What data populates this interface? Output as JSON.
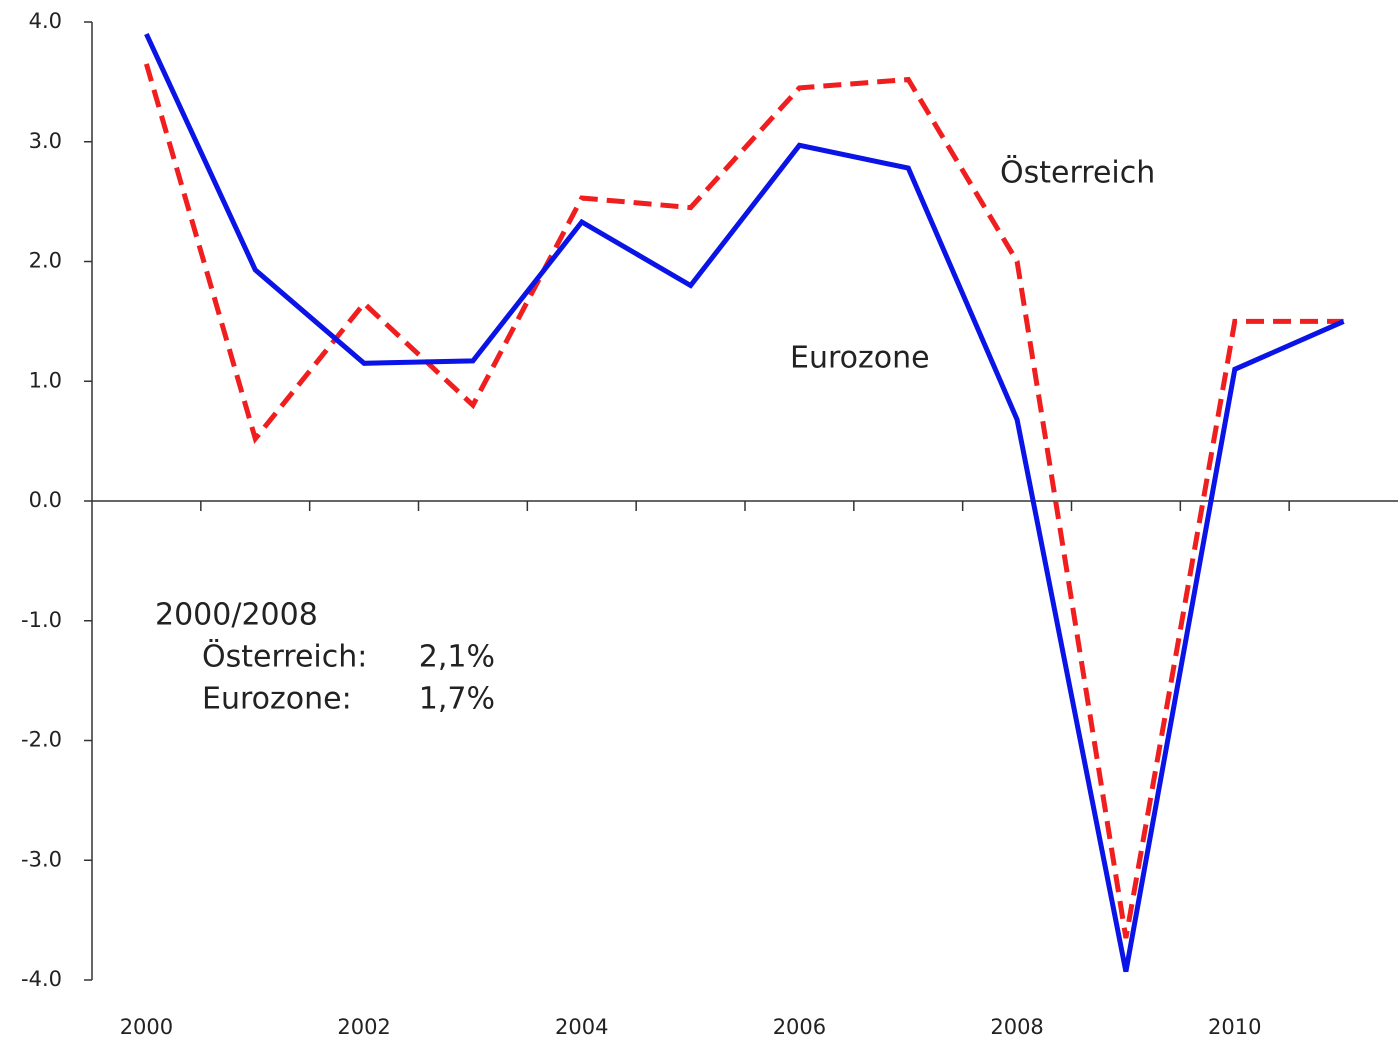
{
  "chart_data": {
    "type": "line",
    "categories": [
      "2000",
      null,
      "2002",
      null,
      "2004",
      null,
      "2006",
      null,
      "2008",
      null,
      "2010",
      null
    ],
    "series": [
      {
        "name": "Eurozone",
        "color": "#0a14e6",
        "dash": false,
        "values": [
          3.9,
          1.93,
          1.15,
          1.17,
          2.33,
          1.8,
          2.97,
          2.78,
          0.68,
          -3.93,
          1.1,
          1.5
        ]
      },
      {
        "name": "Österreich",
        "color": "#f01e1e",
        "dash": true,
        "values": [
          3.65,
          0.52,
          1.65,
          0.8,
          2.53,
          2.45,
          3.45,
          3.52,
          2.0,
          -3.65,
          1.5,
          1.5
        ]
      }
    ],
    "ylim": [
      -4,
      4
    ],
    "yticks": [
      {
        "value": -4,
        "label": "-4.0"
      },
      {
        "value": -3,
        "label": "-3.0"
      },
      {
        "value": -2,
        "label": "-2.0"
      },
      {
        "value": -1,
        "label": "-1.0"
      },
      {
        "value": 0,
        "label": "0.0"
      },
      {
        "value": 1,
        "label": "1.0"
      },
      {
        "value": 2,
        "label": "2.0"
      },
      {
        "value": 3,
        "label": "3.0"
      },
      {
        "value": 4,
        "label": "4.0"
      }
    ],
    "grid": false,
    "summary": {
      "title": "2000/2008",
      "rows": [
        [
          "Österreich:",
          "2,1%"
        ],
        [
          "Eurozone:",
          "1,7%"
        ]
      ]
    }
  }
}
